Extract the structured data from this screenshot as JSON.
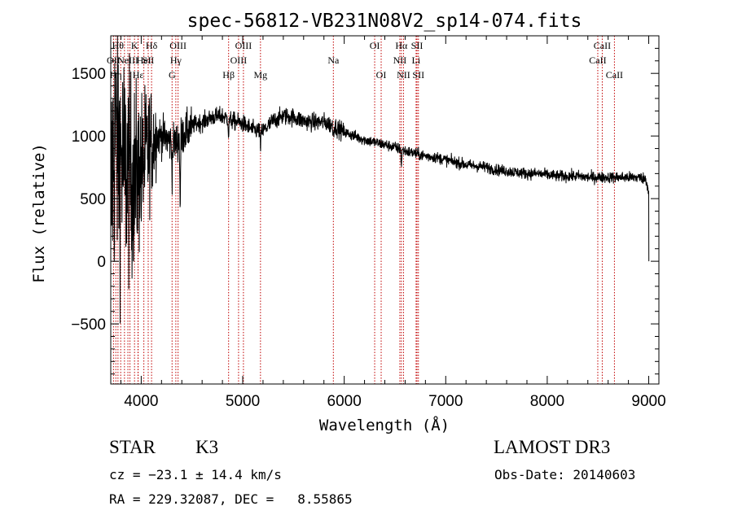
{
  "chart_data": {
    "type": "line",
    "title": "spec-56812-VB231N08V2_sp14-074.fits",
    "xlabel": "Wavelength (Å)",
    "ylabel": "Flux (relative)",
    "xlim": [
      3700,
      9100
    ],
    "ylim": [
      -980,
      1800
    ],
    "x_ticks": [
      4000,
      5000,
      6000,
      7000,
      8000,
      9000
    ],
    "y_ticks": [
      -500,
      0,
      500,
      1000,
      1500
    ],
    "series": [
      {
        "name": "flux",
        "anchors": [
          [
            3700,
            300
          ],
          [
            3720,
            850
          ],
          [
            3750,
            980
          ],
          [
            3800,
            820
          ],
          [
            3850,
            720
          ],
          [
            3900,
            680
          ],
          [
            3950,
            680
          ],
          [
            4000,
            740
          ],
          [
            4050,
            860
          ],
          [
            4100,
            950
          ],
          [
            4150,
            1000
          ],
          [
            4200,
            1000
          ],
          [
            4250,
            980
          ],
          [
            4300,
            940
          ],
          [
            4350,
            950
          ],
          [
            4400,
            1000
          ],
          [
            4450,
            1040
          ],
          [
            4500,
            1080
          ],
          [
            4550,
            1100
          ],
          [
            4600,
            1110
          ],
          [
            4700,
            1150
          ],
          [
            4800,
            1160
          ],
          [
            4900,
            1120
          ],
          [
            5000,
            1100
          ],
          [
            5100,
            1050
          ],
          [
            5200,
            1040
          ],
          [
            5300,
            1120
          ],
          [
            5400,
            1160
          ],
          [
            5500,
            1150
          ],
          [
            5600,
            1120
          ],
          [
            5700,
            1110
          ],
          [
            5800,
            1110
          ],
          [
            5900,
            1080
          ],
          [
            6000,
            1030
          ],
          [
            6100,
            1000
          ],
          [
            6200,
            970
          ],
          [
            6300,
            950
          ],
          [
            6400,
            930
          ],
          [
            6500,
            910
          ],
          [
            6600,
            880
          ],
          [
            6700,
            860
          ],
          [
            6800,
            840
          ],
          [
            6900,
            830
          ],
          [
            7000,
            810
          ],
          [
            7100,
            790
          ],
          [
            7200,
            770
          ],
          [
            7300,
            760
          ],
          [
            7400,
            750
          ],
          [
            7500,
            730
          ],
          [
            7600,
            720
          ],
          [
            7700,
            710
          ],
          [
            7800,
            700
          ],
          [
            7900,
            700
          ],
          [
            8000,
            690
          ],
          [
            8100,
            680
          ],
          [
            8200,
            680
          ],
          [
            8300,
            680
          ],
          [
            8400,
            670
          ],
          [
            8500,
            670
          ],
          [
            8600,
            670
          ],
          [
            8700,
            670
          ],
          [
            8800,
            670
          ],
          [
            8900,
            670
          ],
          [
            8970,
            660
          ],
          [
            9000,
            560
          ]
        ],
        "end_value": 0,
        "noise_level": 42
      }
    ],
    "absorption_features": [
      {
        "wavelength": 4305,
        "depth": 230
      },
      {
        "wavelength": 4384,
        "depth": 580
      },
      {
        "wavelength": 4861,
        "depth": 150
      },
      {
        "wavelength": 5175,
        "depth": 170
      },
      {
        "wavelength": 5893,
        "depth": 70
      },
      {
        "wavelength": 6563,
        "depth": 140
      }
    ],
    "line_markers": [
      {
        "wavelength": 3727,
        "row": 1,
        "label": "OII"
      },
      {
        "wavelength": 3750,
        "row": 2,
        "label": "Hη"
      },
      {
        "wavelength": 3771,
        "row": 0,
        "label": "Hθ"
      },
      {
        "wavelength": 3798,
        "row": 1,
        "label": ""
      },
      {
        "wavelength": 3835,
        "row": 0,
        "label": ""
      },
      {
        "wavelength": 3869,
        "row": 1,
        "label": "NeIII"
      },
      {
        "wavelength": 3889,
        "row": 2,
        "label": ""
      },
      {
        "wavelength": 3934,
        "row": 0,
        "label": "K"
      },
      {
        "wavelength": 3968,
        "row": 0,
        "label": ""
      },
      {
        "wavelength": 3970,
        "row": 2,
        "label": "Hε"
      },
      {
        "wavelength": 4026,
        "row": 1,
        "label": "HeI"
      },
      {
        "wavelength": 4069,
        "row": 1,
        "label": "SII"
      },
      {
        "wavelength": 4102,
        "row": 0,
        "label": "Hδ"
      },
      {
        "wavelength": 4304,
        "row": 2,
        "label": "G"
      },
      {
        "wavelength": 4341,
        "row": 1,
        "label": "Hγ"
      },
      {
        "wavelength": 4363,
        "row": 0,
        "label": "OIII"
      },
      {
        "wavelength": 4861,
        "row": 2,
        "label": "Hβ"
      },
      {
        "wavelength": 4959,
        "row": 1,
        "label": "OIII"
      },
      {
        "wavelength": 5007,
        "row": 0,
        "label": "OIII"
      },
      {
        "wavelength": 5175,
        "row": 2,
        "label": "Mg"
      },
      {
        "wavelength": 5893,
        "row": 1,
        "label": "Na"
      },
      {
        "wavelength": 6300,
        "row": 0,
        "label": "OI"
      },
      {
        "wavelength": 6364,
        "row": 2,
        "label": "OI"
      },
      {
        "wavelength": 6548,
        "row": 1,
        "label": "NII"
      },
      {
        "wavelength": 6563,
        "row": 0,
        "label": "Hα"
      },
      {
        "wavelength": 6584,
        "row": 2,
        "label": "NII"
      },
      {
        "wavelength": 6708,
        "row": 1,
        "label": "Li"
      },
      {
        "wavelength": 6717,
        "row": 0,
        "label": "SII"
      },
      {
        "wavelength": 6731,
        "row": 2,
        "label": "SII"
      },
      {
        "wavelength": 8498,
        "row": 1,
        "label": "CaII"
      },
      {
        "wavelength": 8542,
        "row": 0,
        "label": "CaII"
      },
      {
        "wavelength": 8662,
        "row": 2,
        "label": "CaII"
      }
    ]
  },
  "info": {
    "object_class": "STAR",
    "subclass": "K3",
    "survey": "LAMOST DR3",
    "redshift_line": "cz = −23.1 ± 14.4 km/s",
    "obs_date_line": "Obs-Date: 20140603",
    "coords_line": "RA = 229.32087, DEC =   8.55865"
  },
  "colors": {
    "spectrum": "#000000",
    "marker": "#c00000",
    "frame": "#000000",
    "background": "#ffffff"
  }
}
